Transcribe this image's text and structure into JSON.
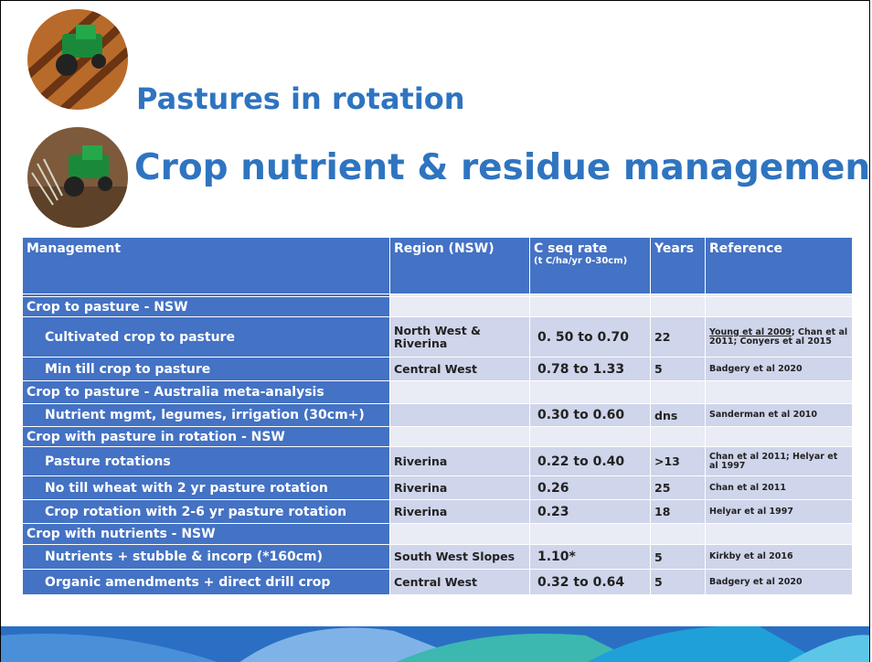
{
  "header": {
    "title": "Pastures in rotation",
    "subtitle": "Crop nutrient & residue management"
  },
  "table": {
    "columns": [
      "Management",
      "Region (NSW)",
      "C seq rate",
      "Years",
      "Reference"
    ],
    "rate_unit": "(t C/ha/yr 0-30cm)",
    "rows": [
      {
        "management": "Crop to pasture - NSW"
      },
      {
        "management": "Cultivated crop to pasture",
        "region": "North West & Riverina",
        "rate": "0. 50 to 0.70",
        "years": "22",
        "reference_link": "Young et al 2009",
        "reference": "; Chan et al 2011; Conyers et al 2015"
      },
      {
        "management": "Min till crop to pasture",
        "region": "Central West",
        "rate": "0.78 to 1.33",
        "years": "5",
        "reference": "Badgery et al 2020"
      },
      {
        "management": "Crop to pasture - Australia meta-analysis"
      },
      {
        "management": "Nutrient mgmt, legumes, irrigation (30cm+)",
        "rate": "0.30 to 0.60",
        "years": "dns",
        "reference": "Sanderman et al 2010"
      },
      {
        "management": "Crop with pasture in rotation - NSW"
      },
      {
        "management": "Pasture rotations",
        "region": "Riverina",
        "rate": "0.22 to 0.40",
        "years": ">13",
        "reference": "Chan et al 2011; Helyar et al 1997"
      },
      {
        "management": "No till wheat with 2 yr pasture rotation",
        "region": "Riverina",
        "rate": "0.26",
        "years": "25",
        "reference": "Chan et al 2011"
      },
      {
        "management": "Crop rotation with 2-6 yr pasture rotation",
        "region": "Riverina",
        "rate": "0.23",
        "years": "18",
        "reference": "Helyar et al 1997"
      },
      {
        "management": "Crop with nutrients - NSW"
      },
      {
        "management": "Nutrients + stubble & incorp (*160cm)",
        "region": "South West Slopes",
        "rate": "1.10*",
        "years": "5",
        "reference": "Kirkby et al 2016"
      },
      {
        "management": "Organic amendments + direct drill crop",
        "region": "Central West",
        "rate": "0.32 to 0.64",
        "years": "5",
        "reference": "Badgery et al 2020"
      }
    ]
  }
}
